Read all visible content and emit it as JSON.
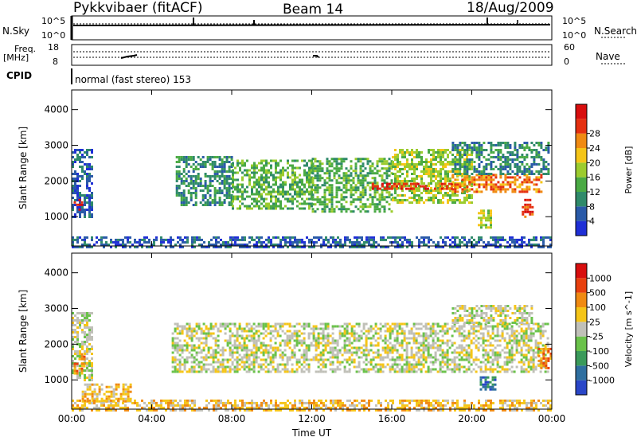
{
  "header": {
    "station": "Pykkvibaer (fitACF)",
    "beam": "Beam 14",
    "date": "18/Aug/2009"
  },
  "panels": {
    "nsky_label": "N.Sky",
    "nsky_ticks": [
      "10^5",
      "10^0"
    ],
    "nsearch_label": "N.Search",
    "nsearch_ticks": [
      "10^5",
      "10^0"
    ],
    "freq_label": "Freq.",
    "freq_unit": "[MHz]",
    "freq_ticks": [
      "18",
      "8"
    ],
    "nave_label": "Nave",
    "nave_ticks": [
      "60",
      "0"
    ],
    "cpid_label": "CPID",
    "cpid_text": "normal (fast stereo) 153"
  },
  "colors": {
    "background": "#ffffff",
    "grid": "#000000",
    "ground_scatter": "#c0c0b8"
  },
  "chart_data": [
    {
      "type": "heatmap",
      "quantity": "power",
      "xlabel": "",
      "ylabel": "Slant Range [km]",
      "x_ticks": [
        "00:00",
        "04:00",
        "08:00",
        "12:00",
        "16:00",
        "20:00",
        "00:00"
      ],
      "xlim_hours": [
        0,
        24
      ],
      "ylim_km": [
        180,
        4550
      ],
      "y_ticks": [
        1000,
        2000,
        3000,
        4000
      ],
      "colorbar": {
        "label": "Power [dB]",
        "ticks": [
          4,
          8,
          12,
          16,
          20,
          24,
          28
        ],
        "colors": [
          "#1f2fd6",
          "#2a5aa8",
          "#2f8a6a",
          "#4aaa44",
          "#9ccc2e",
          "#f5c518",
          "#f08a12",
          "#e53010",
          "#d80e0e"
        ]
      },
      "regions": [
        {
          "t0": 0.0,
          "t1": 1.0,
          "r0": 1000,
          "r1": 2900,
          "level": 1
        },
        {
          "t0": 0.1,
          "t1": 0.5,
          "r0": 1200,
          "r1": 1500,
          "level": 8
        },
        {
          "t0": 5.2,
          "t1": 8.0,
          "r0": 1300,
          "r1": 2700,
          "level": 2
        },
        {
          "t0": 8.0,
          "t1": 12.0,
          "r0": 1200,
          "r1": 2600,
          "level": 3
        },
        {
          "t0": 12.0,
          "t1": 16.0,
          "r0": 1150,
          "r1": 2650,
          "level": 3
        },
        {
          "t0": 16.0,
          "t1": 20.0,
          "r0": 1400,
          "r1": 2900,
          "level": 4
        },
        {
          "t0": 15.0,
          "t1": 19.0,
          "r0": 1750,
          "r1": 1950,
          "level": 7
        },
        {
          "t0": 19.0,
          "t1": 23.5,
          "r0": 1700,
          "r1": 2200,
          "level": 6
        },
        {
          "t0": 19.0,
          "t1": 23.8,
          "r0": 2200,
          "r1": 3100,
          "level": 2
        },
        {
          "t0": 20.3,
          "t1": 21.0,
          "r0": 700,
          "r1": 1200,
          "level": 4
        },
        {
          "t0": 22.5,
          "t1": 23.0,
          "r0": 1000,
          "r1": 1500,
          "level": 7
        },
        {
          "t0": 0.0,
          "t1": 24.0,
          "r0": 180,
          "r1": 450,
          "level": 1
        }
      ]
    },
    {
      "type": "heatmap",
      "quantity": "velocity",
      "xlabel": "Time UT",
      "ylabel": "Slant Range [km]",
      "x_ticks": [
        "00:00",
        "04:00",
        "08:00",
        "12:00",
        "16:00",
        "20:00",
        "00:00"
      ],
      "xlim_hours": [
        0,
        24
      ],
      "ylim_km": [
        180,
        4550
      ],
      "y_ticks": [
        1000,
        2000,
        3000,
        4000
      ],
      "colorbar": {
        "label": "Velocity [m s^-1]",
        "ticks": [
          "1000",
          "500",
          "100",
          "25",
          "-25",
          "-100",
          "-500",
          "-1000"
        ],
        "colors": [
          "#2a46c8",
          "#2f6fa0",
          "#3a9a5a",
          "#6ac24a",
          "#c0c0b8",
          "#f5c518",
          "#f08a12",
          "#e8400e",
          "#d80e0e"
        ]
      },
      "regions": [
        {
          "t0": 0.0,
          "t1": 1.0,
          "r0": 1000,
          "r1": 2900,
          "level": 4
        },
        {
          "t0": 0.1,
          "t1": 0.6,
          "r0": 1200,
          "r1": 1750,
          "level": 6
        },
        {
          "t0": 5.0,
          "t1": 23.8,
          "r0": 1200,
          "r1": 2600,
          "level": 4
        },
        {
          "t0": 19.0,
          "t1": 23.0,
          "r0": 2600,
          "r1": 3100,
          "level": 4
        },
        {
          "t0": 20.4,
          "t1": 21.2,
          "r0": 700,
          "r1": 1100,
          "level": 1
        },
        {
          "t0": 23.3,
          "t1": 24.0,
          "r0": 1300,
          "r1": 1900,
          "level": 6
        },
        {
          "t0": 0.5,
          "t1": 3.0,
          "r0": 400,
          "r1": 900,
          "level": 5
        },
        {
          "t0": 0.0,
          "t1": 24.0,
          "r0": 180,
          "r1": 450,
          "level": 5
        }
      ]
    }
  ]
}
